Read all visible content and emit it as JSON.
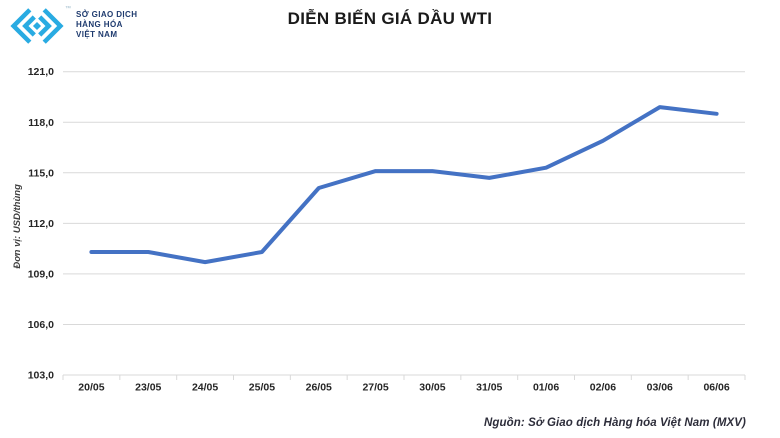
{
  "header": {
    "logo": {
      "line1": "SỞ GIAO DỊCH",
      "line2": "HÀNG HÓA",
      "line3": "VIỆT NAM",
      "trademark": "™",
      "icon": "mxv-diamond-chevrons-icon",
      "icon_color": "#29ABE2",
      "text_color": "#1E3A6E"
    },
    "title": "DIỄN BIẾN GIÁ DẦU WTI"
  },
  "chart_data": {
    "type": "line",
    "title": "DIỄN BIẾN GIÁ DẦU WTI",
    "xlabel": "",
    "ylabel": "Đơn vị: USD/thùng",
    "categories": [
      "20/05",
      "23/05",
      "24/05",
      "25/05",
      "26/05",
      "27/05",
      "30/05",
      "31/05",
      "01/06",
      "02/06",
      "03/06",
      "06/06"
    ],
    "series": [
      {
        "name": "WTI",
        "color": "#4472C4",
        "values": [
          110.3,
          110.3,
          109.7,
          110.3,
          114.1,
          115.1,
          115.1,
          114.7,
          115.3,
          116.9,
          118.9,
          118.5
        ]
      }
    ],
    "ylim": [
      103,
      121
    ],
    "yticks": [
      103,
      106,
      109,
      112,
      115,
      118,
      121
    ],
    "ytick_labels": [
      "103,0",
      "106,0",
      "109,0",
      "112,0",
      "115,0",
      "118,0",
      "121,0"
    ],
    "grid": "horizontal-only",
    "legend": "none",
    "gridline_color": "#D9D9D9",
    "tick_label_color": "#262626",
    "axis_title_color": "#404040"
  },
  "footer": {
    "source": "Nguồn: Sở Giao dịch Hàng hóa Việt Nam (MXV)"
  }
}
